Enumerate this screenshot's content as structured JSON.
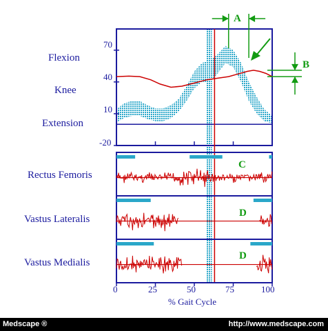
{
  "chart_data": {
    "type": "line",
    "x_ticks": [
      "0",
      "25",
      "50",
      "75",
      "100"
    ],
    "xlabel": "% Gait Cycle",
    "x_range": [
      0,
      100
    ],
    "knee": {
      "y_ticks": [
        "70",
        "40",
        "10",
        "-20"
      ],
      "y_range": [
        -20,
        90
      ],
      "labels": [
        "Flexion",
        "Knee",
        "Extension"
      ],
      "normal_band": {
        "x": [
          0,
          5,
          10,
          15,
          20,
          25,
          30,
          35,
          40,
          45,
          50,
          55,
          60,
          65,
          70,
          75,
          80,
          85,
          90,
          95,
          100
        ],
        "lower": [
          2,
          6,
          8,
          8,
          5,
          3,
          3,
          6,
          12,
          22,
          34,
          40,
          40,
          48,
          58,
          54,
          40,
          22,
          10,
          3,
          1
        ],
        "upper": [
          14,
          20,
          22,
          22,
          18,
          15,
          15,
          18,
          24,
          36,
          50,
          58,
          60,
          66,
          74,
          70,
          58,
          40,
          26,
          14,
          8
        ]
      },
      "patient": {
        "x": [
          0,
          8,
          15,
          22,
          28,
          35,
          42,
          50,
          58,
          65,
          72,
          78,
          84,
          88,
          92,
          96,
          100
        ],
        "values": [
          45,
          45.5,
          45,
          42,
          38,
          35,
          36,
          39,
          42,
          43.5,
          45,
          47.5,
          50,
          51,
          50,
          48,
          45
        ]
      }
    },
    "emg": [
      {
        "name": "Rectus Femoris",
        "marker": "C",
        "normal_on": [
          [
            0,
            12
          ],
          [
            47,
            68
          ],
          [
            98,
            100
          ]
        ],
        "activity": [
          [
            0,
            100
          ]
        ]
      },
      {
        "name": "Vastus Lateralis",
        "marker": "D",
        "normal_on": [
          [
            0,
            22
          ],
          [
            88,
            100
          ]
        ],
        "activity": [
          [
            0,
            40
          ],
          [
            92,
            100
          ]
        ]
      },
      {
        "name": "Vastus Medialis",
        "marker": "D",
        "normal_on": [
          [
            0,
            24
          ],
          [
            86,
            100
          ]
        ],
        "activity": [
          [
            0,
            42
          ],
          [
            90,
            100
          ]
        ]
      }
    ],
    "vertical_lines": {
      "normal_toe_off": 59.5,
      "patient_toe_off": 63
    },
    "annotations": [
      "A",
      "B"
    ]
  },
  "footer": {
    "left": "Medscape ®",
    "right": "http://www.medscape.com"
  },
  "colors": {
    "axis": "#1a1a9e",
    "patient": "#cc0000",
    "band": "#2aa7c9",
    "annotation": "#129b12"
  }
}
